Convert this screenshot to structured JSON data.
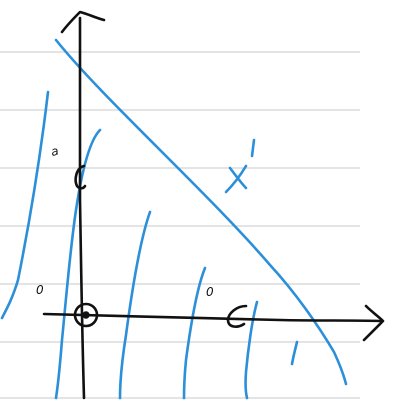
{
  "labels": {
    "region_label": "X",
    "region_label_mark": "'",
    "y_axis_tick_label": "a",
    "origin_label": "0",
    "x_axis_point_label": "0",
    "open_point_mark": "1"
  },
  "colors": {
    "paper": "#ffffff",
    "rule_lines": "#d3d3d3",
    "axes_ink": "#111111",
    "shading_ink": "#2b8fd9"
  }
}
